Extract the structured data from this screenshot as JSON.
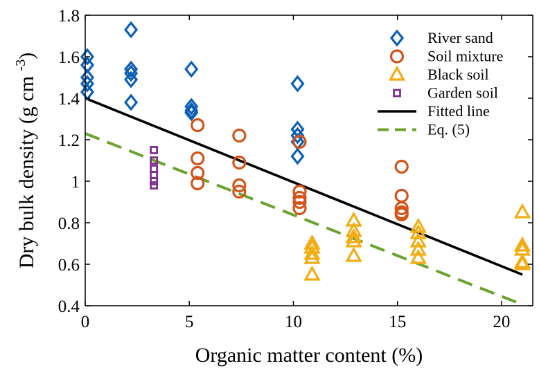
{
  "chart_data": {
    "type": "scatter",
    "title": "",
    "xlabel": "Organic matter content (%)",
    "ylabel": "Dry bulk density (g cm^-3)",
    "xlim": [
      0,
      21.5
    ],
    "ylim": [
      0.4,
      1.8
    ],
    "x_ticks": [
      0,
      5,
      10,
      15,
      20
    ],
    "y_ticks": [
      0.4,
      0.6,
      0.8,
      1.0,
      1.2,
      1.4,
      1.6,
      1.8
    ],
    "x_tick_labels": [
      "0",
      "5",
      "10",
      "15",
      "20"
    ],
    "y_tick_labels": [
      "0.4",
      "0.6",
      "0.8",
      "1",
      "1.2",
      "1.4",
      "1.6",
      "1.8"
    ],
    "grid": false,
    "legend_position": "top-right",
    "series": [
      {
        "name": "River sand",
        "marker": "diamond",
        "color": "#0c5fb5",
        "points": [
          [
            0.1,
            1.6
          ],
          [
            0.1,
            1.56
          ],
          [
            0.1,
            1.5
          ],
          [
            0.1,
            1.47
          ],
          [
            0.1,
            1.43
          ],
          [
            2.2,
            1.73
          ],
          [
            2.2,
            1.54
          ],
          [
            2.2,
            1.52
          ],
          [
            2.2,
            1.49
          ],
          [
            2.2,
            1.38
          ],
          [
            5.1,
            1.54
          ],
          [
            5.1,
            1.36
          ],
          [
            5.1,
            1.34
          ],
          [
            5.1,
            1.33
          ],
          [
            10.2,
            1.47
          ],
          [
            10.2,
            1.25
          ],
          [
            10.2,
            1.22
          ],
          [
            10.2,
            1.19
          ],
          [
            10.2,
            1.12
          ]
        ]
      },
      {
        "name": "Soil mixture",
        "marker": "circle",
        "color": "#d3541a",
        "points": [
          [
            5.4,
            1.27
          ],
          [
            5.4,
            1.11
          ],
          [
            5.4,
            1.04
          ],
          [
            5.4,
            0.99
          ],
          [
            7.4,
            1.22
          ],
          [
            7.4,
            1.09
          ],
          [
            7.4,
            0.98
          ],
          [
            7.4,
            0.95
          ],
          [
            10.3,
            1.19
          ],
          [
            10.3,
            0.95
          ],
          [
            10.3,
            0.92
          ],
          [
            10.3,
            0.9
          ],
          [
            10.3,
            0.87
          ],
          [
            15.2,
            1.07
          ],
          [
            15.2,
            0.93
          ],
          [
            15.2,
            0.87
          ],
          [
            15.2,
            0.85
          ],
          [
            15.2,
            0.84
          ]
        ]
      },
      {
        "name": "Black soil",
        "marker": "triangle",
        "color": "#f2ac14",
        "points": [
          [
            10.9,
            0.7
          ],
          [
            10.9,
            0.68
          ],
          [
            10.9,
            0.65
          ],
          [
            10.9,
            0.63
          ],
          [
            10.9,
            0.55
          ],
          [
            12.9,
            0.81
          ],
          [
            12.9,
            0.76
          ],
          [
            12.9,
            0.73
          ],
          [
            12.9,
            0.71
          ],
          [
            12.9,
            0.64
          ],
          [
            16.0,
            0.78
          ],
          [
            16.0,
            0.75
          ],
          [
            16.0,
            0.71
          ],
          [
            16.0,
            0.67
          ],
          [
            16.0,
            0.63
          ],
          [
            21.0,
            0.85
          ],
          [
            21.0,
            0.69
          ],
          [
            21.0,
            0.67
          ],
          [
            21.0,
            0.61
          ],
          [
            21.0,
            0.6
          ]
        ]
      },
      {
        "name": "Garden soil",
        "marker": "square",
        "color": "#7e2f8e",
        "points": [
          [
            3.3,
            1.15
          ],
          [
            3.3,
            1.1
          ],
          [
            3.3,
            1.06
          ],
          [
            3.3,
            1.03
          ],
          [
            3.3,
            1.0
          ],
          [
            3.3,
            0.98
          ]
        ]
      }
    ],
    "lines": [
      {
        "name": "Fitted line",
        "style": "solid",
        "color": "#000000",
        "points": [
          [
            0,
            1.4
          ],
          [
            21,
            0.55
          ]
        ]
      },
      {
        "name": "Eq. (5)",
        "style": "dashed",
        "color": "#6ba32e",
        "points": [
          [
            0,
            1.23
          ],
          [
            20.9,
            0.41
          ]
        ]
      }
    ]
  }
}
